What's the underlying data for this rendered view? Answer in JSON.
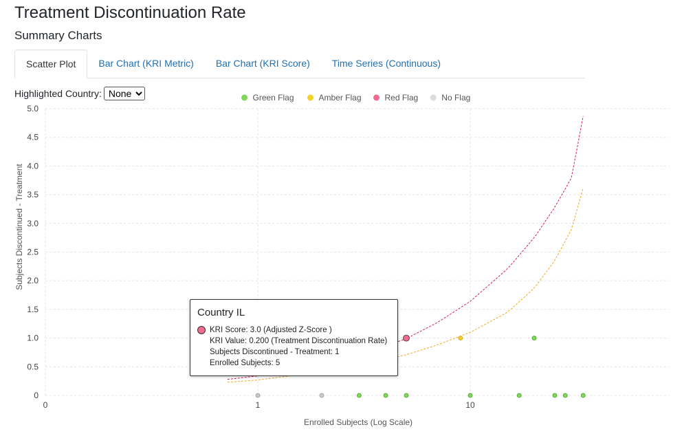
{
  "header": {
    "title": "Treatment Discontinuation Rate",
    "subtitle": "Summary Charts"
  },
  "tabs": [
    {
      "label": "Scatter Plot",
      "active": true
    },
    {
      "label": "Bar Chart (KRI Metric)",
      "active": false
    },
    {
      "label": "Bar Chart (KRI Score)",
      "active": false
    },
    {
      "label": "Time Series (Continuous)",
      "active": false
    }
  ],
  "controls": {
    "highlight_label": "Highlighted Country:",
    "highlight_value": "None",
    "highlight_options": [
      "None"
    ]
  },
  "colors": {
    "green": "#7ed957",
    "amber": "#f7cf2b",
    "red": "#f06b8f",
    "none": "#c9c9c9",
    "red_line": "#d81b5a",
    "amber_line": "#f5a623",
    "link": "#1f6fb2"
  },
  "chart_data": {
    "type": "scatter",
    "xlabel": "Enrolled Subjects (Log Scale)",
    "ylabel": "Subjects Discontinued - Treatment",
    "x_scale": "log",
    "xlim": [
      0.1,
      34
    ],
    "ylim": [
      0,
      5
    ],
    "x_ticks": [
      {
        "value": 0.1,
        "label": "0"
      },
      {
        "value": 1,
        "label": "1"
      },
      {
        "value": 10,
        "label": "10"
      }
    ],
    "y_ticks": [
      {
        "value": 0,
        "label": "0"
      },
      {
        "value": 0.5,
        "label": "0.5"
      },
      {
        "value": 1,
        "label": "1.0"
      },
      {
        "value": 1.5,
        "label": "1.5"
      },
      {
        "value": 2,
        "label": "2.0"
      },
      {
        "value": 2.5,
        "label": "2.5"
      },
      {
        "value": 3,
        "label": "3.0"
      },
      {
        "value": 3.5,
        "label": "3.5"
      },
      {
        "value": 4,
        "label": "4.0"
      },
      {
        "value": 4.5,
        "label": "4.5"
      },
      {
        "value": 5,
        "label": "5.0"
      }
    ],
    "grid": true,
    "legend_position": "top",
    "legend": [
      {
        "name": "Green Flag",
        "color": "#7ed957"
      },
      {
        "name": "Amber Flag",
        "color": "#f7cf2b"
      },
      {
        "name": "Red Flag",
        "color": "#f06b8f"
      },
      {
        "name": "No Flag",
        "color": "#dcdcdc"
      }
    ],
    "series": [
      {
        "flag": "green",
        "x": [
          3,
          4,
          5,
          10,
          17,
          25,
          28,
          34,
          20
        ],
        "y": [
          0,
          0,
          0,
          0,
          0,
          0,
          0,
          0,
          1
        ]
      },
      {
        "flag": "amber",
        "x": [
          9
        ],
        "y": [
          1
        ]
      },
      {
        "flag": "red",
        "x": [
          5
        ],
        "y": [
          1
        ]
      },
      {
        "flag": "none",
        "x": [
          1,
          2
        ],
        "y": [
          0,
          0
        ]
      }
    ],
    "threshold_lines": [
      {
        "flag": "red",
        "x": [
          0.72,
          1,
          2,
          3,
          5,
          7,
          10,
          15,
          20,
          25,
          30,
          34
        ],
        "y": [
          0.28,
          0.34,
          0.53,
          0.7,
          0.99,
          1.27,
          1.64,
          2.21,
          2.75,
          3.28,
          3.8,
          4.87
        ]
      },
      {
        "flag": "amber",
        "x": [
          0.72,
          1,
          2,
          3,
          5,
          7,
          10,
          15,
          20,
          25,
          30,
          34
        ],
        "y": [
          0.23,
          0.27,
          0.41,
          0.52,
          0.71,
          0.88,
          1.1,
          1.45,
          1.87,
          2.35,
          2.9,
          3.62
        ]
      }
    ]
  },
  "tooltip": {
    "title": "Country IL",
    "lines": [
      "KRI Score: 3.0 (Adjusted Z-Score )",
      "KRI Value: 0.200 (Treatment Discontinuation Rate)",
      "Subjects Discontinued - Treatment: 1",
      "Enrolled Subjects: 5"
    ]
  }
}
